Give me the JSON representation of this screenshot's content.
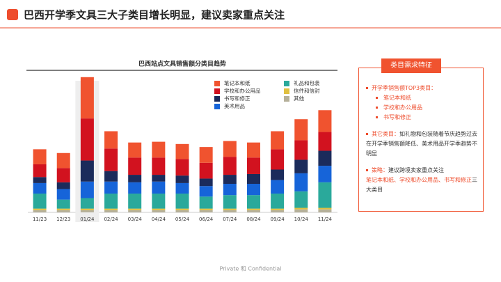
{
  "header": {
    "title": "巴西开学季文具三大子类目增长明显，建议卖家重点关注"
  },
  "chart_data": {
    "type": "stacked_bar",
    "title": "巴西站点文具销售额分类目趋势",
    "categories": [
      "11/23",
      "12/23",
      "01/24",
      "02/24",
      "03/24",
      "04/24",
      "05/24",
      "06/24",
      "07/24",
      "08/24",
      "09/24",
      "10/24",
      "11/24"
    ],
    "series": [
      {
        "name": "其他",
        "color": "#b5b09a",
        "values": [
          3,
          3,
          3,
          3,
          3,
          3,
          3,
          3,
          3,
          3,
          3,
          4,
          4
        ]
      },
      {
        "name": "信件和信封",
        "color": "#e0c040",
        "values": [
          2,
          2,
          2,
          2,
          2,
          2,
          2,
          2,
          2,
          2,
          2,
          2,
          2
        ]
      },
      {
        "name": "礼品和包装",
        "color": "#2aa99b",
        "values": [
          20,
          12,
          14,
          20,
          20,
          20,
          20,
          16,
          18,
          18,
          20,
          22,
          34
        ]
      },
      {
        "name": "美术用品",
        "color": "#1664d9",
        "values": [
          14,
          14,
          22,
          16,
          15,
          16,
          14,
          14,
          15,
          15,
          18,
          24,
          22
        ]
      },
      {
        "name": "书写和修正",
        "color": "#1b2b5b",
        "values": [
          8,
          9,
          28,
          14,
          10,
          9,
          10,
          10,
          12,
          13,
          14,
          18,
          20
        ]
      },
      {
        "name": "学校和办公用品",
        "color": "#d2121f",
        "values": [
          17,
          19,
          56,
          30,
          23,
          23,
          22,
          21,
          24,
          22,
          27,
          26,
          25
        ]
      },
      {
        "name": "笔记本和纸",
        "color": "#f0532f",
        "values": [
          20,
          20,
          55,
          23,
          20,
          21,
          20,
          21,
          21,
          20,
          24,
          28,
          29
        ]
      }
    ],
    "legend_order": [
      6,
      2,
      5,
      1,
      4,
      0,
      3
    ],
    "ylim": [
      0,
      190
    ],
    "legend": "top-right",
    "highlight": "01/24"
  },
  "panel": {
    "heading": "类目需求特征",
    "top3": {
      "label": "开学季销售额TOP3类目：",
      "items": [
        "笔记本和纸",
        "学校和办公用品",
        "书写和修正"
      ]
    },
    "other": {
      "label": "其它类目：",
      "text": "如礼物和包装随着节庆趋势过去在开学季销售额降低、美术用品开学季趋势不明显"
    },
    "strategy": {
      "label": "策略：",
      "text": "建议跨境卖家重点关注",
      "focus": "笔记本和纸、学校和办公用品、书写和修正",
      "tail": "三大类目"
    }
  },
  "footer": "Private 和 Confidential"
}
